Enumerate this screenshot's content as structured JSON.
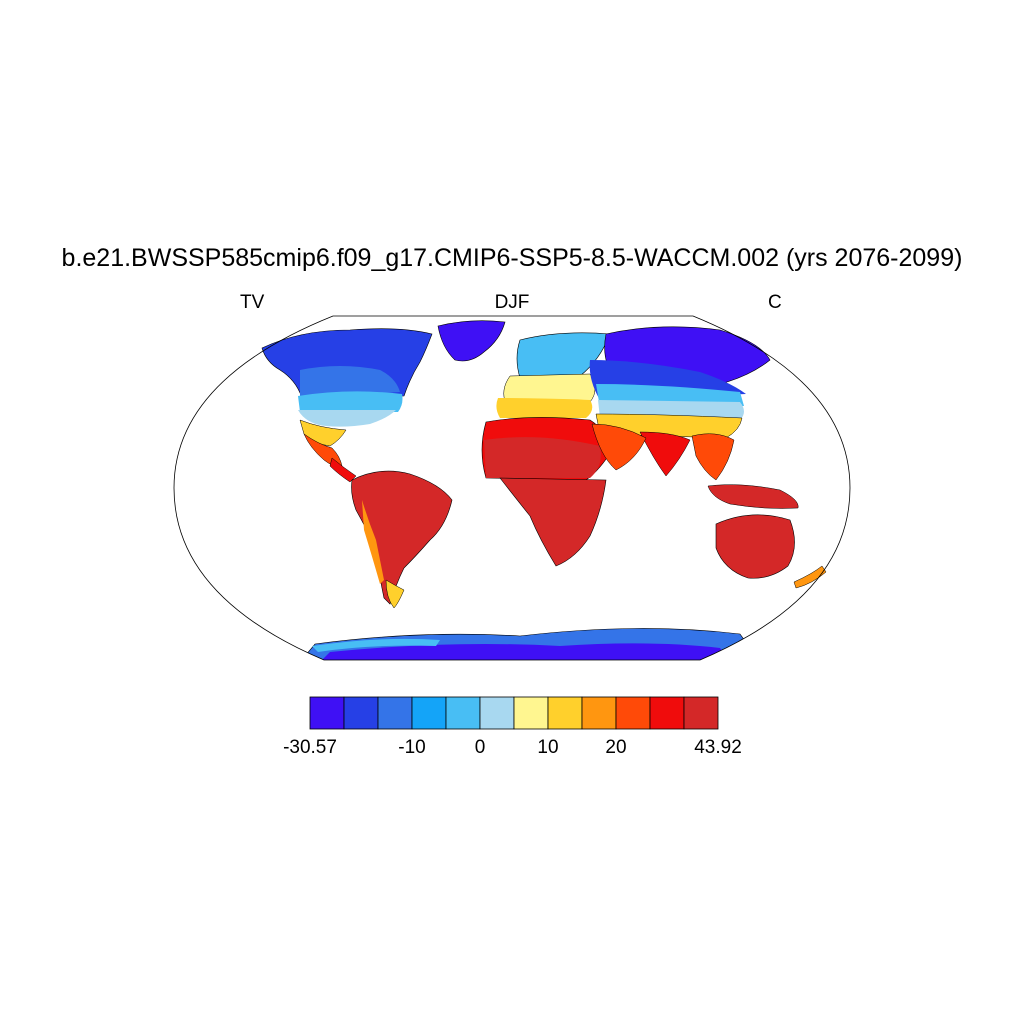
{
  "title": "b.e21.BWSSP585cmip6.f09_g17.CMIP6-SSP5-8.5-WACCM.002 (yrs 2076-2099)",
  "left_label": "TV",
  "center_label": "DJF",
  "right_label": "C",
  "colorbar": {
    "min_label": "-30.57",
    "max_label": "43.92",
    "tick_labels": [
      "-10",
      "0",
      "10",
      "20"
    ],
    "colors": [
      "#3f10f5",
      "#2640e6",
      "#3474e8",
      "#14a4f8",
      "#48bef4",
      "#a8d8f0",
      "#fff690",
      "#ffd02c",
      "#ff9610",
      "#ff4a08",
      "#f00c0c",
      "#d42828"
    ]
  },
  "map": {
    "projection": "robinson",
    "ocean_color": "#ffffff",
    "border_color": "#000000"
  }
}
